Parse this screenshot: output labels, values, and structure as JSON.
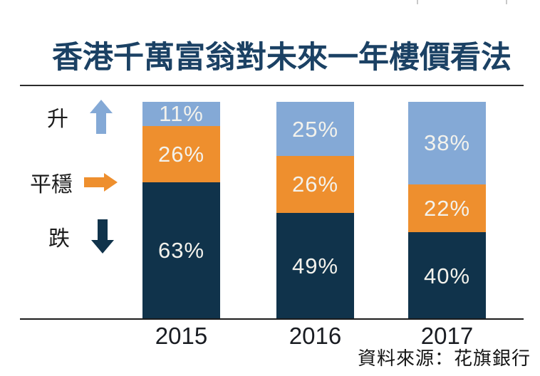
{
  "title": "香港千萬富翁對未來一年樓價看法",
  "source": "資料來源：花旗銀行",
  "colors": {
    "rise_blue": "#84a9d6",
    "stable_orange": "#ee8f2e",
    "fall_navy": "#10334b",
    "title_navy": "#1b4164",
    "label_text": "#f3f2ec"
  },
  "legend": {
    "items": [
      {
        "label": "升",
        "icon": "up-arrow-icon",
        "color": "#84a9d6"
      },
      {
        "label": "平穩",
        "icon": "right-arrow-icon",
        "color": "#ee8f2e"
      },
      {
        "label": "跌",
        "icon": "down-arrow-icon",
        "color": "#10334b"
      }
    ]
  },
  "chart_data": {
    "type": "bar",
    "stacked": true,
    "orientation": "vertical",
    "title": "香港千萬富翁對未來一年樓價看法",
    "categories": [
      "2015",
      "2016",
      "2017"
    ],
    "series": [
      {
        "name": "升",
        "color": "#84a9d6",
        "values": [
          11,
          25,
          38
        ],
        "labels": [
          "11%",
          "25%",
          "38%"
        ]
      },
      {
        "name": "平穩",
        "color": "#ee8f2e",
        "values": [
          26,
          26,
          22
        ],
        "labels": [
          "26%",
          "26%",
          "22%"
        ]
      },
      {
        "name": "跌",
        "color": "#10334b",
        "values": [
          63,
          49,
          40
        ],
        "labels": [
          "63%",
          "49%",
          "40%"
        ]
      }
    ],
    "unit": "%",
    "ylim": [
      0,
      100
    ],
    "grid": false,
    "legend_position": "left",
    "source": "資料來源：花旗銀行"
  }
}
